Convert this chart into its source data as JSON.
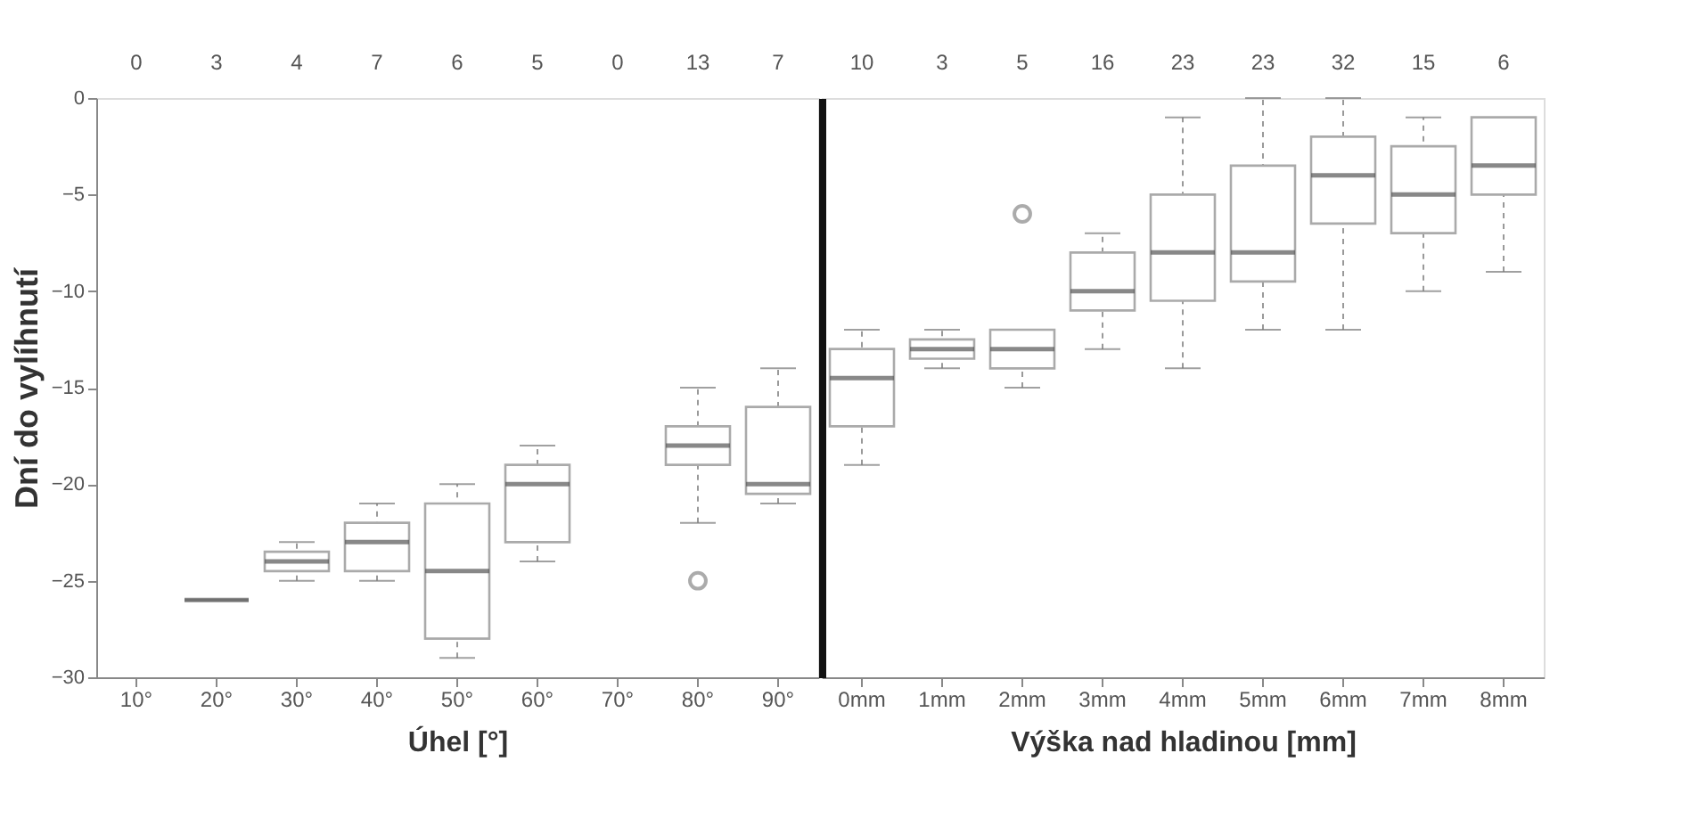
{
  "chart_data": [
    {
      "type": "box",
      "ylabel": "Dní do vylíhnutí",
      "xlabel": "Úhel [°]",
      "categories": [
        "10°",
        "20°",
        "30°",
        "40°",
        "50°",
        "60°",
        "70°",
        "80°",
        "90°"
      ],
      "boxes": [
        null,
        {
          "low": -26,
          "q1": -26,
          "median": -26,
          "q3": -26,
          "high": -26
        },
        {
          "low": -25,
          "q1": -24.5,
          "median": -24,
          "q3": -23.5,
          "high": -23
        },
        {
          "low": -25,
          "q1": -24.5,
          "median": -23,
          "q3": -22,
          "high": -21
        },
        {
          "low": -29,
          "q1": -28,
          "median": -24.5,
          "q3": -21,
          "high": -20
        },
        {
          "low": -24,
          "q1": -23,
          "median": -20,
          "q3": -19,
          "high": -18
        },
        null,
        {
          "low": -22,
          "q1": -19,
          "median": -18,
          "q3": -17,
          "high": -15,
          "outliers": [
            -25
          ]
        },
        {
          "low": -21,
          "q1": -20.5,
          "median": -20,
          "q3": -16,
          "high": -14
        }
      ],
      "ylim": [
        -30,
        0
      ],
      "yticks": [
        -30,
        -25,
        -20,
        -15,
        -10,
        -5,
        0
      ],
      "grid": false,
      "annotations": [
        "0",
        "3",
        "4",
        "7",
        "6",
        "5",
        "0",
        "13",
        "7"
      ]
    },
    {
      "type": "box",
      "xlabel": "Výška nad hladinou [mm]",
      "categories": [
        "0mm",
        "1mm",
        "2mm",
        "3mm",
        "4mm",
        "5mm",
        "6mm",
        "7mm",
        "8mm"
      ],
      "boxes": [
        {
          "low": -19,
          "q1": -17,
          "median": -14.5,
          "q3": -13,
          "high": -12
        },
        {
          "low": -14,
          "q1": -13.5,
          "median": -13,
          "q3": -12.5,
          "high": -12
        },
        {
          "low": -15,
          "q1": -14,
          "median": -13,
          "q3": -12,
          "high": -12,
          "outliers": [
            -6
          ]
        },
        {
          "low": -13,
          "q1": -11,
          "median": -10,
          "q3": -8,
          "high": -7
        },
        {
          "low": -14,
          "q1": -10.5,
          "median": -8,
          "q3": -5,
          "high": -1
        },
        {
          "low": -12,
          "q1": -9.5,
          "median": -8,
          "q3": -3.5,
          "high": 0
        },
        {
          "low": -12,
          "q1": -6.5,
          "median": -4,
          "q3": -2,
          "high": 0
        },
        {
          "low": -10,
          "q1": -7,
          "median": -5,
          "q3": -2.5,
          "high": -1
        },
        {
          "low": -9,
          "q1": -5,
          "median": -3.5,
          "q3": -1,
          "high": -1
        }
      ],
      "ylim": [
        -30,
        0
      ],
      "yticks": [
        -30,
        -25,
        -20,
        -15,
        -10,
        -5,
        0
      ],
      "grid": false,
      "tick_labels": "x",
      "annotations": [
        "10",
        "3",
        "5",
        "16",
        "23",
        "23",
        "32",
        "15",
        "6"
      ]
    }
  ]
}
